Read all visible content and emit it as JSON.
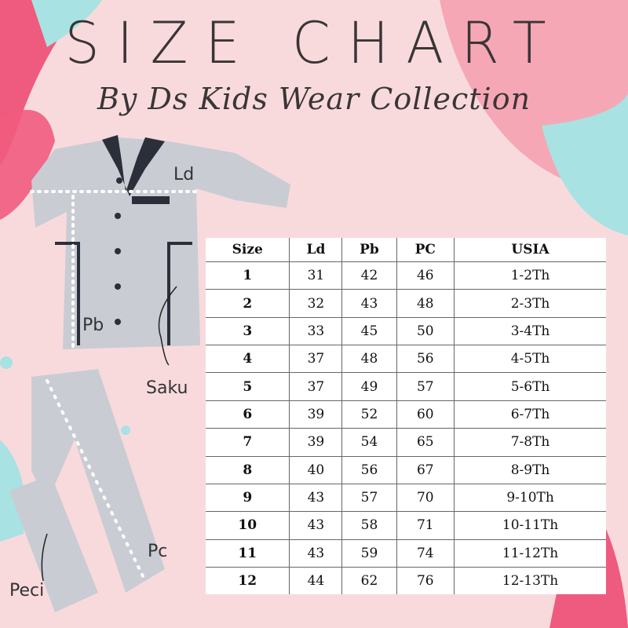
{
  "header": {
    "title": "SIZE CHART",
    "subtitle": "By Ds Kids Wear Collection"
  },
  "illustration_labels": {
    "ld": "Ld",
    "pb": "Pb",
    "saku": "Saku",
    "pc": "Pc",
    "peci": "Peci"
  },
  "colors": {
    "background": "#f8dadd",
    "pink_accent": "#ef5b7e",
    "teal_accent": "#a8e2e2",
    "garment": "#c9ccd3",
    "collar": "#2b2f3a"
  },
  "size_table": {
    "columns": [
      "Size",
      "Ld",
      "Pb",
      "PC",
      "USIA"
    ],
    "rows": [
      [
        "1",
        "31",
        "42",
        "46",
        "1-2Th"
      ],
      [
        "2",
        "32",
        "43",
        "48",
        "2-3Th"
      ],
      [
        "3",
        "33",
        "45",
        "50",
        "3-4Th"
      ],
      [
        "4",
        "37",
        "48",
        "56",
        "4-5Th"
      ],
      [
        "5",
        "37",
        "49",
        "57",
        "5-6Th"
      ],
      [
        "6",
        "39",
        "52",
        "60",
        "6-7Th"
      ],
      [
        "7",
        "39",
        "54",
        "65",
        "7-8Th"
      ],
      [
        "8",
        "40",
        "56",
        "67",
        "8-9Th"
      ],
      [
        "9",
        "43",
        "57",
        "70",
        "9-10Th"
      ],
      [
        "10",
        "43",
        "58",
        "71",
        "10-11Th"
      ],
      [
        "11",
        "43",
        "59",
        "74",
        "11-12Th"
      ],
      [
        "12",
        "44",
        "62",
        "76",
        "12-13Th"
      ]
    ]
  }
}
